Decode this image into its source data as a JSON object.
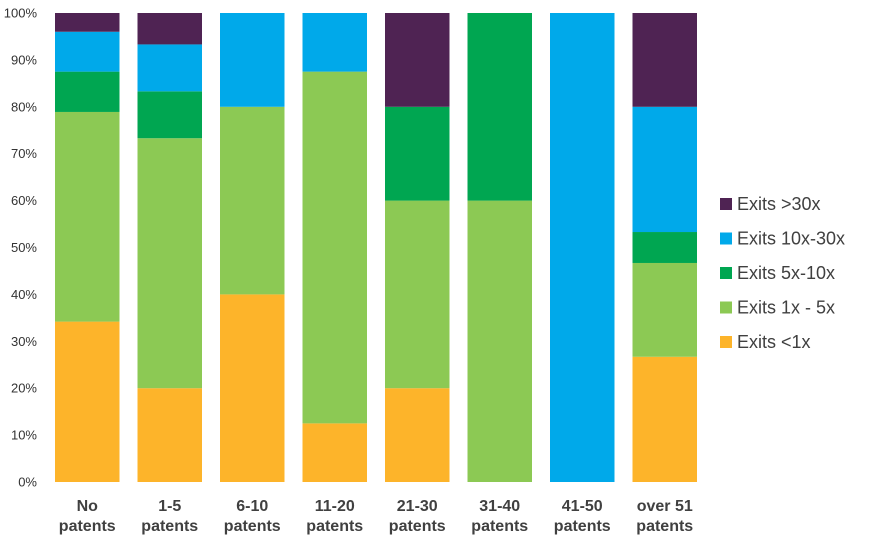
{
  "chart_data": {
    "type": "bar",
    "stacked": true,
    "percent": true,
    "categories": [
      [
        "No",
        "patents"
      ],
      [
        "1-5",
        "patents"
      ],
      [
        "6-10",
        "patents"
      ],
      [
        "11-20",
        "patents"
      ],
      [
        "21-30",
        "patents"
      ],
      [
        "31-40",
        "patents"
      ],
      [
        "41-50",
        "patents"
      ],
      [
        "over 51",
        "patents"
      ]
    ],
    "series": [
      {
        "name": "Exits <1x",
        "color": "#FDB42A",
        "values": [
          34.2,
          20.0,
          40.0,
          12.5,
          20.0,
          0,
          0,
          26.7
        ]
      },
      {
        "name": "Exits 1x - 5x",
        "color": "#8CC954",
        "values": [
          44.7,
          53.3,
          40.0,
          75.0,
          40.0,
          60.0,
          0,
          20.0
        ]
      },
      {
        "name": "Exits 5x-10x",
        "color": "#00A651",
        "values": [
          8.6,
          10.0,
          0,
          0,
          20.0,
          40.0,
          0,
          6.6
        ]
      },
      {
        "name": "Exits 10x-30x",
        "color": "#00A9EA",
        "values": [
          8.5,
          10.0,
          20.0,
          12.5,
          0,
          0,
          100.0,
          26.7
        ]
      },
      {
        "name": "Exits >30x",
        "color": "#4F2353",
        "values": [
          4.0,
          6.7,
          0,
          0,
          20.0,
          0,
          0,
          20.0
        ]
      }
    ],
    "yticks": [
      "0%",
      "10%",
      "20%",
      "30%",
      "40%",
      "50%",
      "60%",
      "70%",
      "80%",
      "90%",
      "100%"
    ],
    "ylim": [
      0,
      100
    ],
    "title": "",
    "xlabel": "",
    "ylabel": "",
    "grid": false,
    "legend_placement": "right",
    "legend_order": [
      "Exits >30x",
      "Exits 10x-30x",
      "Exits 5x-10x",
      "Exits 1x - 5x",
      "Exits <1x"
    ]
  }
}
